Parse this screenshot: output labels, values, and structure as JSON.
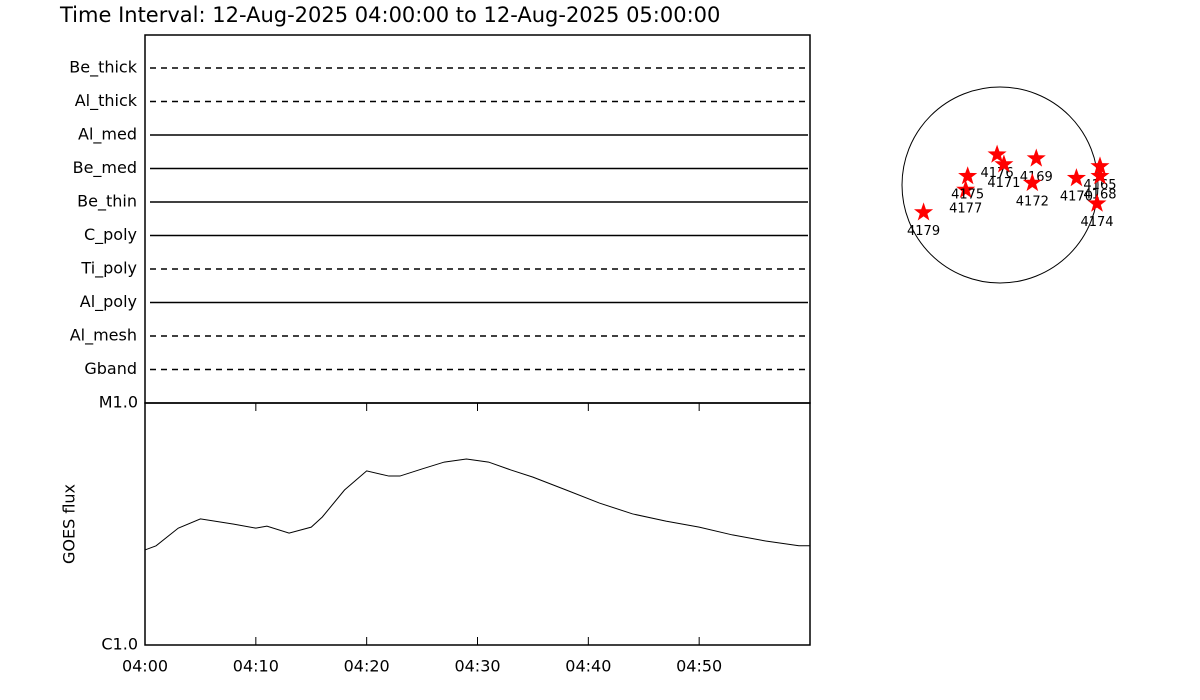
{
  "title": "Time Interval: 12-Aug-2025 04:00:00 to 12-Aug-2025 05:00:00",
  "chart_data": [
    {
      "type": "timeline",
      "categories": [
        "Be_thick",
        "Al_thick",
        "Al_med",
        "Be_med",
        "Be_thin",
        "C_poly",
        "Ti_poly",
        "Al_poly",
        "Al_mesh",
        "Gband"
      ],
      "styles": [
        "dashed",
        "dashed",
        "solid",
        "solid",
        "solid",
        "solid",
        "dashed",
        "solid",
        "dashed",
        "dashed"
      ]
    },
    {
      "type": "line",
      "ylabel": "GOES flux",
      "color": "#000000",
      "log_y": true,
      "x": [
        0,
        1,
        3,
        5,
        8,
        10,
        11,
        13,
        15,
        16,
        18,
        20,
        22,
        23,
        25,
        27,
        29,
        31,
        33,
        35,
        38,
        41,
        44,
        47,
        50,
        53,
        56,
        59,
        60
      ],
      "values": [
        2.47e-06,
        2.57e-06,
        3.04e-06,
        3.32e-06,
        3.16e-06,
        3.04e-06,
        3.1e-06,
        2.9e-06,
        3.07e-06,
        3.38e-06,
        4.37e-06,
        5.24e-06,
        4.99e-06,
        4.99e-06,
        5.34e-06,
        5.7e-06,
        5.87e-06,
        5.7e-06,
        5.29e-06,
        4.94e-06,
        4.37e-06,
        3.86e-06,
        3.48e-06,
        3.25e-06,
        3.07e-06,
        2.85e-06,
        2.69e-06,
        2.57e-06,
        2.57e-06
      ],
      "xlim": [
        0,
        60
      ],
      "xticks": [
        {
          "value": 0,
          "label": "04:00"
        },
        {
          "value": 10,
          "label": "04:10"
        },
        {
          "value": 20,
          "label": "04:20"
        },
        {
          "value": 30,
          "label": "04:30"
        },
        {
          "value": 40,
          "label": "04:40"
        },
        {
          "value": 50,
          "label": "04:50"
        }
      ],
      "ylim": [
        1e-06,
        1e-05
      ],
      "yticks": [
        {
          "value": 1e-06,
          "label": "C1.0"
        },
        {
          "value": 1e-05,
          "label": "M1.0"
        }
      ]
    },
    {
      "type": "scatter",
      "color": "#ff0000",
      "labels": [
        "4179",
        "4177",
        "4175",
        "4176",
        "4171",
        "4169",
        "4172",
        "4170",
        "4165",
        "4168",
        "4174"
      ],
      "x": [
        -0.78,
        -0.35,
        -0.33,
        -0.03,
        0.04,
        0.37,
        0.33,
        0.78,
        1.02,
        1.02,
        0.99
      ],
      "values": [
        -0.28,
        -0.05,
        0.09,
        0.31,
        0.21,
        0.27,
        0.02,
        0.07,
        0.19,
        0.09,
        -0.19
      ]
    }
  ]
}
